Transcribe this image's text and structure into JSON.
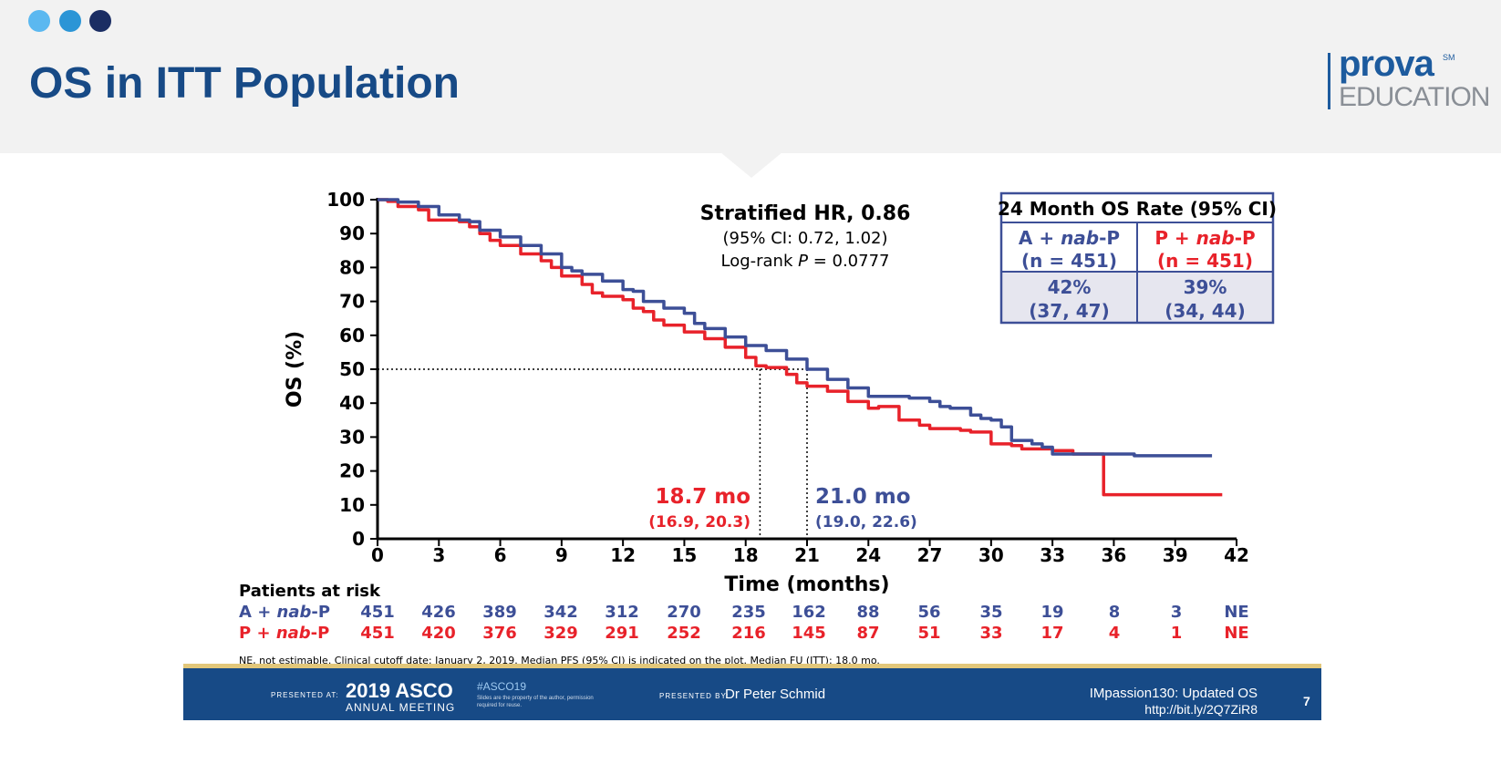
{
  "header": {
    "title": "OS in ITT Population",
    "dot_colors": [
      "#5bb8f0",
      "#2b95d6",
      "#1a2d63"
    ],
    "logo_prova": "prova",
    "logo_sm": "SM",
    "logo_education": "EDUCATION"
  },
  "colors": {
    "blue_series": "#3d4f97",
    "red_series": "#e8222a",
    "title_blue": "#174a86",
    "footer_bg": "#174a86"
  },
  "chart_data": {
    "type": "line",
    "subtype": "kaplan-meier",
    "xlabel": "Time (months)",
    "ylabel": "OS (%)",
    "xlim": [
      0,
      42
    ],
    "ylim": [
      0,
      100
    ],
    "x_ticks": [
      0,
      3,
      6,
      9,
      12,
      15,
      18,
      21,
      24,
      27,
      30,
      33,
      36,
      39,
      42
    ],
    "y_ticks": [
      0,
      10,
      20,
      30,
      40,
      50,
      60,
      70,
      80,
      90,
      100
    ],
    "reference_line_y": 50,
    "series": [
      {
        "name": "A + nab-P",
        "color": "#3d4f97",
        "median": 21.0,
        "points": [
          [
            0,
            100
          ],
          [
            1,
            99.3
          ],
          [
            2,
            98
          ],
          [
            3,
            95.5
          ],
          [
            4,
            94
          ],
          [
            4.5,
            93.5
          ],
          [
            5,
            91
          ],
          [
            6,
            89
          ],
          [
            7,
            86.5
          ],
          [
            8,
            84
          ],
          [
            9,
            80
          ],
          [
            9.5,
            79
          ],
          [
            10,
            78
          ],
          [
            11,
            76
          ],
          [
            12,
            73.5
          ],
          [
            12.5,
            73
          ],
          [
            13,
            70
          ],
          [
            14,
            68
          ],
          [
            15,
            66.5
          ],
          [
            15.5,
            63.5
          ],
          [
            16,
            62
          ],
          [
            17,
            59.5
          ],
          [
            18,
            57
          ],
          [
            19,
            55.5
          ],
          [
            20,
            53
          ],
          [
            21,
            50
          ],
          [
            22,
            47
          ],
          [
            23,
            44.5
          ],
          [
            24,
            42
          ],
          [
            25,
            42
          ],
          [
            26,
            41.5
          ],
          [
            27,
            40.5
          ],
          [
            27.5,
            39
          ],
          [
            28,
            38.5
          ],
          [
            29,
            36.5
          ],
          [
            29.5,
            35.5
          ],
          [
            30,
            35
          ],
          [
            30.5,
            33
          ],
          [
            31,
            29
          ],
          [
            32,
            28
          ],
          [
            32.5,
            27
          ],
          [
            33,
            25
          ],
          [
            35,
            25
          ],
          [
            37,
            24.5
          ],
          [
            40.8,
            24.5
          ]
        ]
      },
      {
        "name": "P + nab-P",
        "color": "#e8222a",
        "median": 18.7,
        "points": [
          [
            0,
            100
          ],
          [
            0.5,
            99.5
          ],
          [
            1,
            98
          ],
          [
            2,
            97
          ],
          [
            2.5,
            94
          ],
          [
            4,
            93.5
          ],
          [
            4.5,
            92
          ],
          [
            5,
            90
          ],
          [
            5.5,
            88
          ],
          [
            6,
            86.5
          ],
          [
            7,
            84
          ],
          [
            8,
            82
          ],
          [
            8.5,
            80
          ],
          [
            9,
            77.5
          ],
          [
            10,
            75
          ],
          [
            10.5,
            72.5
          ],
          [
            11,
            71.5
          ],
          [
            12,
            70.5
          ],
          [
            12.5,
            68
          ],
          [
            13,
            67
          ],
          [
            13.5,
            64.5
          ],
          [
            14,
            63
          ],
          [
            15,
            61
          ],
          [
            16,
            59
          ],
          [
            17,
            56.5
          ],
          [
            18,
            53.5
          ],
          [
            18.5,
            51
          ],
          [
            19,
            50.5
          ],
          [
            20,
            48.5
          ],
          [
            20.5,
            46
          ],
          [
            21,
            45
          ],
          [
            22,
            43.5
          ],
          [
            23,
            40.5
          ],
          [
            24,
            38.5
          ],
          [
            24.5,
            39
          ],
          [
            25.5,
            35
          ],
          [
            26.5,
            33.5
          ],
          [
            27,
            32.5
          ],
          [
            28,
            32.5
          ],
          [
            28.5,
            32
          ],
          [
            29,
            31.5
          ],
          [
            30,
            28
          ],
          [
            31,
            27.5
          ],
          [
            31.5,
            26.5
          ],
          [
            32,
            26.5
          ],
          [
            33,
            26
          ],
          [
            34,
            25
          ],
          [
            35,
            25
          ],
          [
            35.5,
            13
          ],
          [
            41.3,
            13
          ]
        ]
      }
    ],
    "annotations": {
      "hr_title": "Stratified HR, 0.86",
      "hr_ci": "(95% CI: 0.72, 1.02)",
      "logrank_prefix": "Log-rank ",
      "logrank_p": "P",
      "logrank_value": " = 0.0777",
      "red_median": "18.7 mo",
      "red_ci": "(16.9, 20.3)",
      "blue_median": "21.0 mo",
      "blue_ci": "(19.0, 22.6)"
    },
    "table": {
      "title": "24 Month OS Rate (95% CI)",
      "col1_header": [
        "A + ",
        "nab",
        "-P"
      ],
      "col1_n": "(n = 451)",
      "col2_header": [
        "P + ",
        "nab",
        "-P"
      ],
      "col2_n": "(n = 451)",
      "col1_rate": "42%",
      "col1_ci": "(37, 47)",
      "col2_rate": "39%",
      "col2_ci": "(34, 44)"
    },
    "at_risk": {
      "title": "Patients at risk",
      "rows": [
        {
          "label": [
            "A + ",
            "nab",
            "-P"
          ],
          "color": "#3d4f97",
          "values": [
            "451",
            "426",
            "389",
            "342",
            "312",
            "270",
            "235",
            "162",
            "88",
            "56",
            "35",
            "19",
            "8",
            "3",
            "NE"
          ]
        },
        {
          "label": [
            "P + ",
            "nab",
            "-P"
          ],
          "color": "#e8222a",
          "values": [
            "451",
            "420",
            "376",
            "329",
            "291",
            "252",
            "216",
            "145",
            "87",
            "51",
            "33",
            "17",
            "4",
            "1",
            "NE"
          ]
        }
      ]
    },
    "footnote": "NE, not estimable. Clinical cutoff date: January 2, 2019. Median PFS (95% CI) is indicated on the plot. Median FU (ITT): 18.0 mo."
  },
  "footer": {
    "presented_at": "PRESENTED AT:",
    "year_asco": "2019 ASCO",
    "annual_meeting": "ANNUAL MEETING",
    "hashtag": "#ASCO19",
    "slides_note": "Slides are the property of the author, permission required for reuse.",
    "presented_by": "PRESENTED BY:",
    "presenter": "Dr Peter Schmid",
    "study": "IMpassion130: Updated OS",
    "link": "http://bit.ly/2Q7ZiR8",
    "slide_number": "7"
  }
}
